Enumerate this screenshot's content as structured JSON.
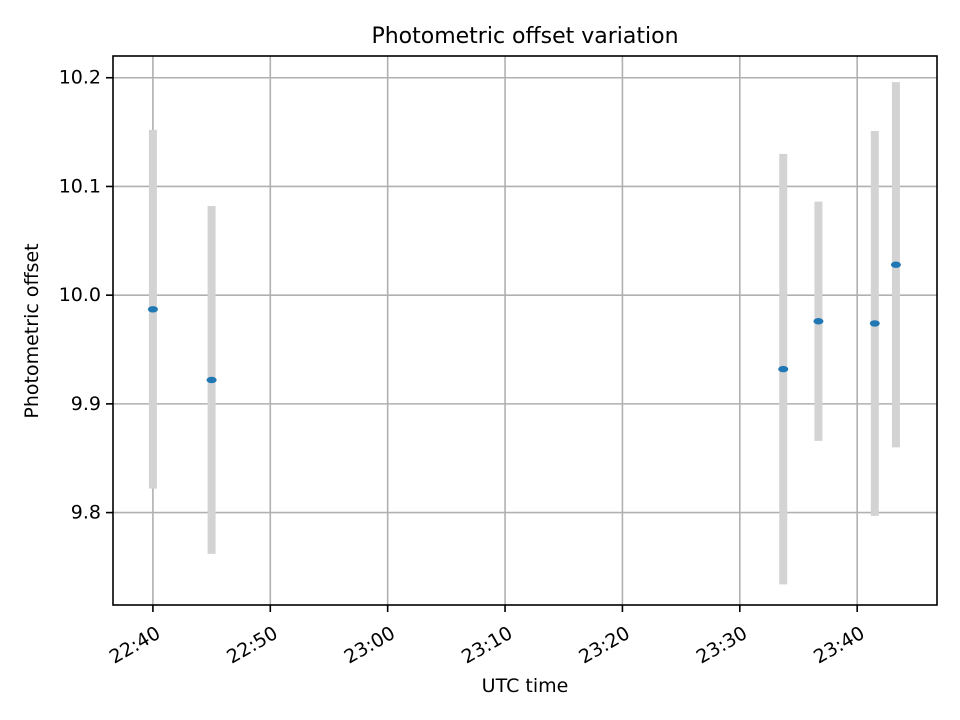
{
  "chart_data": {
    "type": "scatter",
    "title": "Photometric offset variation",
    "xlabel": "UTC time",
    "ylabel": "Photometric offset",
    "x_ticks": [
      "22:40",
      "22:50",
      "23:00",
      "23:10",
      "23:20",
      "23:30",
      "23:40"
    ],
    "y_ticks": [
      "9.8",
      "9.9",
      "10.0",
      "10.1",
      "10.2"
    ],
    "xlim": [
      "22:36.6",
      "23:46.8"
    ],
    "ylim": [
      9.715,
      10.22
    ],
    "grid": true,
    "colors": {
      "point": "#1f77b4",
      "errorbar": "#d3d3d3"
    },
    "points": [
      {
        "time": "22:40.0",
        "offset": 9.987,
        "yerr": 0.165
      },
      {
        "time": "22:45.0",
        "offset": 9.922,
        "yerr": 0.16
      },
      {
        "time": "23:33.7",
        "offset": 9.932,
        "yerr": 0.198
      },
      {
        "time": "23:36.7",
        "offset": 9.976,
        "yerr": 0.11
      },
      {
        "time": "23:41.5",
        "offset": 9.974,
        "yerr": 0.177
      },
      {
        "time": "23:43.3",
        "offset": 10.028,
        "yerr": 0.168
      }
    ]
  }
}
